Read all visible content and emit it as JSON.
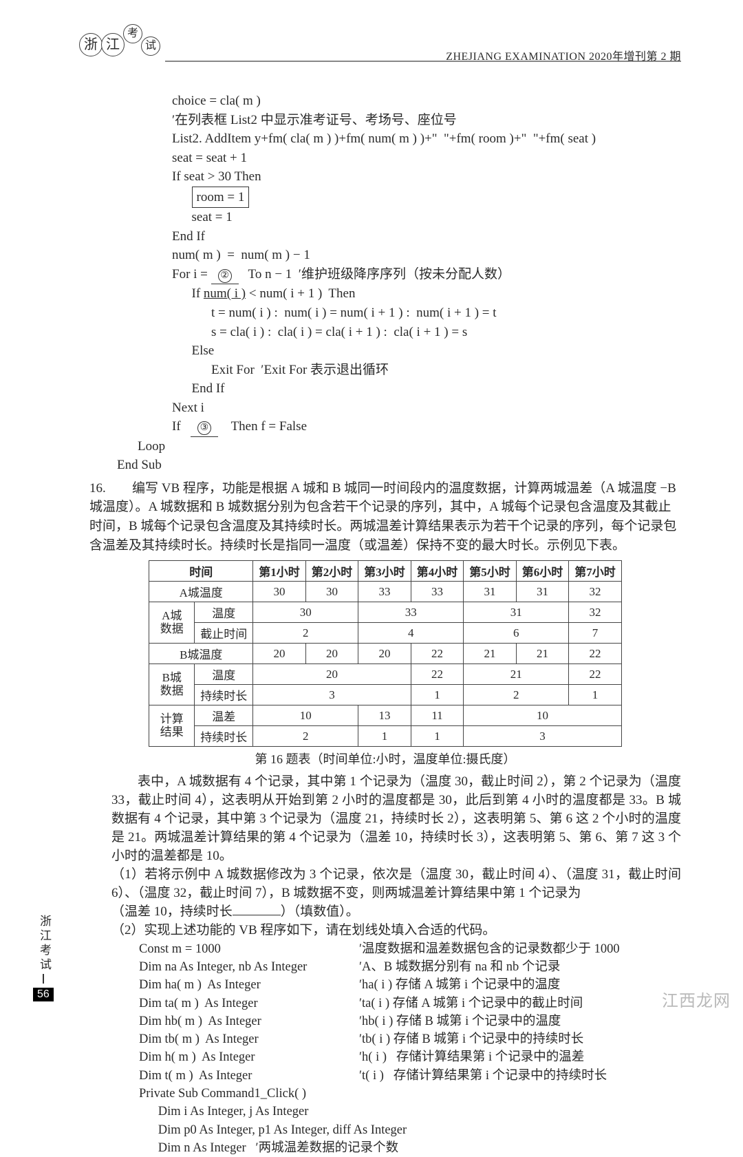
{
  "header": {
    "right": "ZHEJIANG EXAMINATION 2020年增刊第 2 期",
    "logo": [
      "浙",
      "江",
      "考",
      "试"
    ]
  },
  "code1": {
    "l1": "choice = cla( m )",
    "l2": "′在列表框 List2 中显示准考证号、考场号、座位号",
    "l3": "List2. AddItem y+fm( cla( m ) )+fm( num( m ) )+\"  \"+fm( room )+\"  \"+fm( seat )",
    "l4": "seat = seat + 1",
    "l5": "If seat > 30 Then",
    "l6_boxed": "room = 1",
    "l7": "seat = 1",
    "l8": "End If",
    "l9": "num( m )  =  num( m ) − 1",
    "l10a": "For i = ",
    "l10b": "   To n − 1  ′维护班级降序序列（按未分配人数）",
    "blank2": "②",
    "l11a": "If ",
    "l11b": "num( i )",
    "l11c": " < num( i + 1 )  Then",
    "l12": "t = num( i ) :  num( i ) = num( i + 1 ) :  num( i + 1 ) = t",
    "l13": "s = cla( i ) :  cla( i ) = cla( i + 1 ) :  cla( i + 1 ) = s",
    "l14": "Else",
    "l15": "Exit For  ′Exit For 表示退出循环",
    "l16": "End If",
    "l17": "Next i",
    "l18a": "If   ",
    "blank3": "③",
    "l18b": "    Then f = False",
    "l19": "Loop",
    "l20": "End Sub"
  },
  "q16": {
    "num": "16.",
    "p1": "编写 VB 程序，功能是根据 A 城和 B 城同一时间段内的温度数据，计算两城温差（A 城温度 −B 城温度）。A 城数据和 B 城数据分别为包含若干个记录的序列，其中，A 城每个记录包含温度及其截止时间，B 城每个记录包含温度及其持续时长。两城温差计算结果表示为若干个记录的序列，每个记录包含温差及其持续时长。持续时长是指同一温度（或温差）保持不变的最大时长。示例见下表。"
  },
  "table": {
    "header": [
      "时间",
      "第1小时",
      "第2小时",
      "第3小时",
      "第4小时",
      "第5小时",
      "第6小时",
      "第7小时"
    ],
    "rows": [
      {
        "g": "",
        "lbl": "A城温度",
        "v": [
          "30",
          "30",
          "33",
          "33",
          "31",
          "31",
          "32"
        ]
      },
      {
        "g": "A城",
        "lbl": "温度",
        "v": [
          [
            "30",
            2
          ],
          [
            "33",
            2
          ],
          [
            "31",
            2
          ],
          [
            "32",
            1
          ]
        ]
      },
      {
        "g": "数据",
        "lbl": "截止时间",
        "v": [
          [
            "2",
            2
          ],
          [
            "4",
            2
          ],
          [
            "6",
            2
          ],
          [
            "7",
            1
          ]
        ]
      },
      {
        "g": "",
        "lbl": "B城温度",
        "v": [
          "20",
          "20",
          "20",
          "22",
          "21",
          "21",
          "22"
        ]
      },
      {
        "g": "B城",
        "lbl": "温度",
        "v": [
          [
            "20",
            3
          ],
          [
            "22",
            1
          ],
          [
            "21",
            2
          ],
          [
            "22",
            1
          ]
        ]
      },
      {
        "g": "数据",
        "lbl": "持续时长",
        "v": [
          [
            "3",
            3
          ],
          [
            "1",
            1
          ],
          [
            "2",
            2
          ],
          [
            "1",
            1
          ]
        ]
      },
      {
        "g": "计算",
        "lbl": "温差",
        "v": [
          [
            "10",
            2
          ],
          [
            "13",
            1
          ],
          [
            "11",
            1
          ],
          [
            "10",
            3
          ]
        ]
      },
      {
        "g": "结果",
        "lbl": "持续时长",
        "v": [
          [
            "2",
            2
          ],
          [
            "1",
            1
          ],
          [
            "1",
            1
          ],
          [
            "3",
            3
          ]
        ]
      }
    ],
    "caption": "第 16 题表（时间单位:小时，温度单位:摄氏度）"
  },
  "desc": {
    "p1": "表中，A 城数据有 4 个记录，其中第 1 个记录为（温度 30，截止时间 2），第 2 个记录为（温度 33，截止时间 4），这表明从开始到第 2 小时的温度都是 30，此后到第 4 小时的温度都是 33。B 城数据有 4 个记录，其中第 3 个记录为（温度 21，持续时长 2），这表明第 5、第 6 这 2 个小时的温度是 21。两城温差计算结果的第 4 个记录为（温差 10，持续时长 3），这表明第 5、第 6、第 7 这 3 个小时的温差都是 10。",
    "q1a": "（1）若将示例中 A 城数据修改为 3 个记录，依次是（温度 30，截止时间 4）、（温度 31，截止时间 6）、（温度 32，截止时间 7），B 城数据不变，则两城温差计算结果中第 1 个记录为",
    "q1b": "（温差 10，持续时长",
    "q1c": "）（填数值）。",
    "q2": "（2）实现上述功能的 VB 程序如下，请在划线处填入合适的代码。"
  },
  "code2": [
    [
      "Const m = 1000",
      "′温度数据和温差数据包含的记录数都少于 1000"
    ],
    [
      "Dim na As Integer, nb As Integer",
      "′A、B 城数据分别有 na 和 nb 个记录"
    ],
    [
      "Dim ha( m )  As Integer",
      "′ha( i ) 存储 A 城第 i 个记录中的温度"
    ],
    [
      "Dim ta( m )  As Integer",
      "′ta( i ) 存储 A 城第 i 个记录中的截止时间"
    ],
    [
      "Dim hb( m )  As Integer",
      "′hb( i ) 存储 B 城第 i 个记录中的温度"
    ],
    [
      "Dim tb( m )  As Integer",
      "′tb( i ) 存储 B 城第 i 个记录中的持续时长"
    ],
    [
      "Dim h( m )  As Integer",
      "′h( i )   存储计算结果第 i 个记录中的温差"
    ],
    [
      "Dim t( m )  As Integer",
      "′t( i )   存储计算结果第 i 个记录中的持续时长"
    ],
    [
      "Private Sub Command1_Click( )",
      ""
    ],
    [
      "      Dim i As Integer, j As Integer",
      ""
    ],
    [
      "      Dim p0 As Integer, p1 As Integer, diff As Integer",
      ""
    ],
    [
      "      Dim n As Integer   ′两城温差数据的记录个数",
      ""
    ]
  ],
  "footer": {
    "side": "浙江考试",
    "page": "56",
    "watermark": "江西龙网"
  }
}
